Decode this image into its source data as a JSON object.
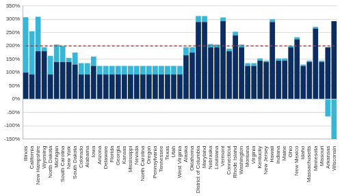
{
  "chart_data": {
    "type": "bar",
    "stacked": true,
    "grid": true,
    "categories": [
      "Illinois",
      "California",
      "New Hampshire",
      "Wyoming",
      "North Dakota",
      "Michigan",
      "South Carolina",
      "New York",
      "South Dakota",
      "Colorado",
      "Alabama",
      "Iowa",
      "Arizona",
      "Delaware",
      "Florida",
      "Georgia",
      "Kansas",
      "Mississippi",
      "Nevada",
      "North Carolina",
      "Oregon",
      "Pennsylvania",
      "Tennessee",
      "Texas",
      "Utah",
      "West Virginia",
      "Alaska",
      "Oklahoma",
      "District of Columbia",
      "Maryland",
      "Nebraska",
      "Louisiana",
      "Vermont",
      "Connecticut",
      "Rhode Island",
      "Washington",
      "Montana",
      "Virginia",
      "Kentucky",
      "New Jersey",
      "Hawaii",
      "Indiana",
      "Maine",
      "Ohio",
      "New Mexico",
      "Idaho",
      "Massachusetts",
      "Minnesota",
      "Missouri",
      "Arkansas",
      "Wisconsin"
    ],
    "series": [
      {
        "type": "bar",
        "color": "#0b2d5f",
        "values": [
          100,
          93,
          180,
          180,
          93,
          140,
          140,
          140,
          130,
          93,
          93,
          125,
          93,
          93,
          93,
          93,
          93,
          93,
          93,
          93,
          93,
          93,
          93,
          93,
          93,
          93,
          165,
          175,
          290,
          290,
          195,
          195,
          293,
          180,
          240,
          195,
          125,
          125,
          145,
          140,
          290,
          145,
          145,
          195,
          225,
          125,
          140,
          265,
          140,
          195,
          293
        ]
      },
      {
        "type": "bar",
        "color": "#38b6d8",
        "values": [
          208,
          162,
          130,
          15,
          70,
          65,
          60,
          15,
          45,
          42,
          42,
          35,
          32,
          32,
          32,
          32,
          32,
          32,
          32,
          32,
          32,
          32,
          32,
          32,
          32,
          32,
          30,
          20,
          22,
          22,
          12,
          10,
          14,
          10,
          13,
          10,
          10,
          10,
          8,
          5,
          10,
          8,
          8,
          5,
          8,
          5,
          5,
          7,
          5,
          -65,
          -150
        ]
      },
      {
        "type": "line",
        "color": "#c0392b",
        "line_style": "dashed",
        "values": [
          200,
          200,
          200,
          200,
          200,
          200,
          200,
          200,
          200,
          200,
          200,
          200,
          200,
          200,
          200,
          200,
          200,
          200,
          200,
          200,
          200,
          200,
          200,
          200,
          200,
          200,
          200,
          200,
          200,
          200,
          200,
          200,
          200,
          200,
          200,
          200,
          200,
          200,
          200,
          200,
          200,
          200,
          200,
          200,
          200,
          200,
          200,
          200,
          200,
          200,
          200
        ]
      }
    ],
    "ylim": [
      -150,
      350
    ],
    "yticks": [
      {
        "value": -150,
        "label": "-150%"
      },
      {
        "value": -100,
        "label": "-100%"
      },
      {
        "value": -50,
        "label": "-50%"
      },
      {
        "value": 0,
        "label": "0%"
      },
      {
        "value": 50,
        "label": "50%"
      },
      {
        "value": 100,
        "label": "100%"
      },
      {
        "value": 150,
        "label": "150%"
      },
      {
        "value": 200,
        "label": "200%"
      },
      {
        "value": 250,
        "label": "250%"
      },
      {
        "value": 300,
        "label": "300%"
      },
      {
        "value": 350,
        "label": "350%"
      }
    ]
  }
}
